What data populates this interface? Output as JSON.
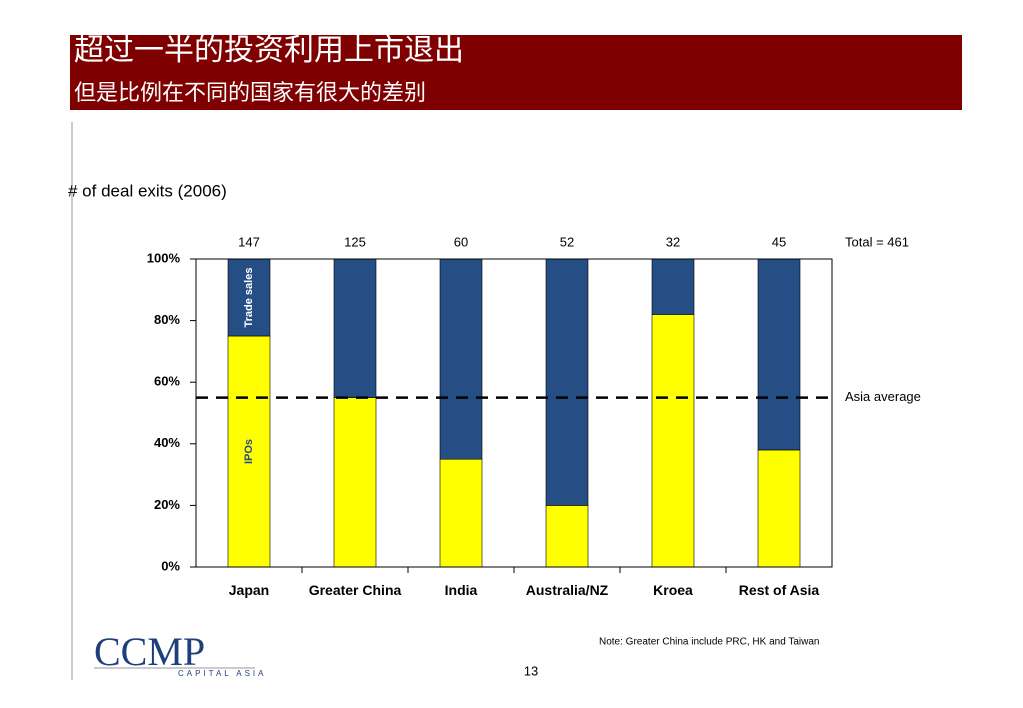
{
  "header": {
    "title": "超过一半的投资利用上市退出",
    "subtitle": "但是比例在不同的国家有很大的差别"
  },
  "chart_data": {
    "type": "bar",
    "stacked": true,
    "axis_label": "# of deal exits (2006)",
    "categories": [
      "Japan",
      "Greater China",
      "India",
      "Australia/NZ",
      "Kroea",
      "Rest of Asia"
    ],
    "deal_counts": [
      147,
      125,
      60,
      52,
      32,
      45
    ],
    "total_label": "Total = 461",
    "series": [
      {
        "name": "IPOs",
        "color": "#ffff00",
        "values": [
          75,
          55,
          35,
          20,
          82,
          38
        ]
      },
      {
        "name": "Trade sales",
        "color": "#254e85",
        "values": [
          25,
          45,
          65,
          80,
          18,
          62
        ]
      }
    ],
    "reference_line": {
      "value": 55,
      "label": "Asia average"
    },
    "ylim": [
      0,
      100
    ],
    "yticks": [
      {
        "value": 0,
        "label": "0%"
      },
      {
        "value": 20,
        "label": "20%"
      },
      {
        "value": 40,
        "label": "40%"
      },
      {
        "value": 60,
        "label": "60%"
      },
      {
        "value": 80,
        "label": "80%"
      },
      {
        "value": 100,
        "label": "100%"
      }
    ]
  },
  "footer": {
    "note": "Note:  Greater China include PRC, HK and Taiwan",
    "page": "13",
    "logo": "CCMP",
    "logo_sub": "CAPITAL ASIA"
  }
}
